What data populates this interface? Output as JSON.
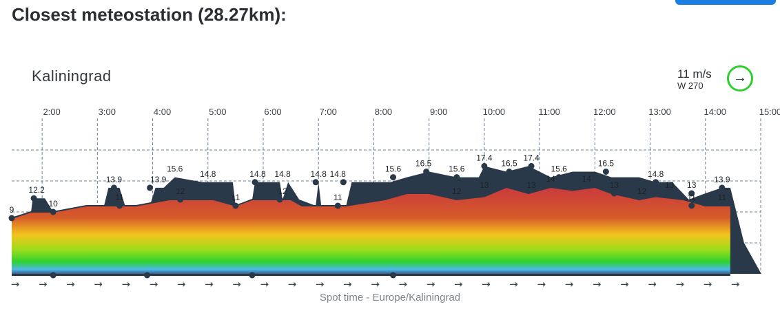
{
  "header": {
    "title": "Closest meteostation (28.27km):"
  },
  "station": {
    "name": "Kaliningrad",
    "wind_speed": "11 m/s",
    "wind_direction": "W 270",
    "arrow": "→",
    "ring_color": "#2fce2f"
  },
  "footer": {
    "caption": "Spot time - Europe/Kaliningrad"
  },
  "chart_data": {
    "type": "area",
    "xlabel": "Spot time - Europe/Kaliningrad",
    "x_ticks": [
      "2:00",
      "3:00",
      "4:00",
      "5:00",
      "6:00",
      "7:00",
      "8:00",
      "9:00",
      "10:00",
      "11:00",
      "12:00",
      "13:00",
      "14:00",
      "15:00"
    ],
    "xlim": [
      1.45,
      15.0
    ],
    "ylim": [
      0,
      20
    ],
    "grid": true,
    "y_gridlines": [
      5,
      10,
      15,
      20
    ],
    "colors": {
      "gust_band": "#29394a",
      "axis": "#456075",
      "label": "#1e2226"
    },
    "gradient": [
      {
        "stop": 0.0,
        "color": "#c93a3d"
      },
      {
        "stop": 0.35,
        "color": "#d65a2a"
      },
      {
        "stop": 0.55,
        "color": "#f2c51c"
      },
      {
        "stop": 0.72,
        "color": "#9edc1b"
      },
      {
        "stop": 0.86,
        "color": "#2fd22f"
      },
      {
        "stop": 0.95,
        "color": "#4cb8e8"
      },
      {
        "stop": 1.0,
        "color": "#3d5d8c"
      }
    ],
    "series": [
      {
        "name": "wind",
        "points": [
          [
            1.45,
            9
          ],
          [
            1.8,
            10
          ],
          [
            2.2,
            10
          ],
          [
            2.8,
            11
          ],
          [
            3.7,
            11
          ],
          [
            4.3,
            12
          ],
          [
            5.1,
            12
          ],
          [
            5.5,
            11
          ],
          [
            5.8,
            12
          ],
          [
            6.5,
            12
          ],
          [
            6.7,
            11
          ],
          [
            7.0,
            11
          ],
          [
            7.5,
            11
          ],
          [
            8.2,
            12
          ],
          [
            8.6,
            13
          ],
          [
            9.0,
            13
          ],
          [
            9.5,
            12
          ],
          [
            10.0,
            12.5
          ],
          [
            10.4,
            14
          ],
          [
            10.8,
            13
          ],
          [
            11.2,
            14
          ],
          [
            11.6,
            13.5
          ],
          [
            12.0,
            14
          ],
          [
            12.3,
            13
          ],
          [
            12.8,
            12
          ],
          [
            13.1,
            12.5
          ],
          [
            13.6,
            12
          ],
          [
            14.0,
            11
          ],
          [
            14.3,
            11
          ],
          [
            14.45,
            11
          ]
        ]
      },
      {
        "name": "gust",
        "points": [
          [
            1.45,
            9
          ],
          [
            1.8,
            10
          ],
          [
            1.83,
            12.2
          ],
          [
            2.05,
            12.2
          ],
          [
            2.2,
            10
          ],
          [
            2.8,
            11
          ],
          [
            3.12,
            11
          ],
          [
            3.2,
            13.9
          ],
          [
            3.4,
            13.9
          ],
          [
            3.5,
            11
          ],
          [
            3.7,
            11
          ],
          [
            3.95,
            11
          ],
          [
            4.05,
            13.9
          ],
          [
            4.2,
            13.9
          ],
          [
            4.4,
            15.6
          ],
          [
            4.9,
            14.8
          ],
          [
            5.45,
            14.8
          ],
          [
            5.5,
            11
          ],
          [
            5.8,
            12
          ],
          [
            5.85,
            14.8
          ],
          [
            6.3,
            14.8
          ],
          [
            6.35,
            12
          ],
          [
            6.45,
            14.8
          ],
          [
            6.65,
            12
          ],
          [
            6.95,
            11
          ],
          [
            7.0,
            14.8
          ],
          [
            7.05,
            11
          ],
          [
            7.5,
            11
          ],
          [
            7.6,
            14.8
          ],
          [
            8.3,
            14.8
          ],
          [
            8.6,
            15.6
          ],
          [
            9.0,
            16.5
          ],
          [
            9.5,
            15.6
          ],
          [
            9.9,
            15.6
          ],
          [
            10.0,
            17.4
          ],
          [
            10.4,
            16.5
          ],
          [
            10.8,
            17.4
          ],
          [
            11.2,
            15.6
          ],
          [
            11.6,
            16.5
          ],
          [
            12.0,
            16.5
          ],
          [
            12.3,
            15.6
          ],
          [
            12.8,
            15.6
          ],
          [
            13.1,
            14.8
          ],
          [
            13.4,
            14.8
          ],
          [
            13.7,
            12
          ],
          [
            14.0,
            13
          ],
          [
            14.3,
            13.9
          ],
          [
            14.45,
            13.9
          ]
        ]
      }
    ],
    "labels": [
      {
        "x": 1.45,
        "y": 9,
        "text": "9",
        "pos": "above"
      },
      {
        "x": 1.9,
        "y": 12.2,
        "text": "12.2",
        "pos": "above"
      },
      {
        "x": 2.2,
        "y": 10,
        "text": "10",
        "pos": "above"
      },
      {
        "x": 3.3,
        "y": 13.9,
        "text": "13.9",
        "pos": "above"
      },
      {
        "x": 3.4,
        "y": 11,
        "text": "11",
        "pos": "above"
      },
      {
        "x": 4.1,
        "y": 13.9,
        "text": "13.9",
        "pos": "above"
      },
      {
        "x": 4.4,
        "y": 15.6,
        "text": "15.6",
        "pos": "above"
      },
      {
        "x": 4.5,
        "y": 12,
        "text": "12",
        "pos": "above"
      },
      {
        "x": 5.0,
        "y": 14.8,
        "text": "14.8",
        "pos": "above"
      },
      {
        "x": 5.5,
        "y": 11,
        "text": "11",
        "pos": "above"
      },
      {
        "x": 5.9,
        "y": 14.8,
        "text": "14.8",
        "pos": "above"
      },
      {
        "x": 6.35,
        "y": 14.8,
        "text": "14.8",
        "pos": "above"
      },
      {
        "x": 6.35,
        "y": 12,
        "text": "12",
        "pos": "above"
      },
      {
        "x": 7.0,
        "y": 14.8,
        "text": "14.8",
        "pos": "above"
      },
      {
        "x": 7.35,
        "y": 14.8,
        "text": "14.8",
        "pos": "above"
      },
      {
        "x": 7.35,
        "y": 11,
        "text": "11",
        "pos": "above"
      },
      {
        "x": 8.35,
        "y": 15.6,
        "text": "15.6",
        "pos": "above"
      },
      {
        "x": 8.9,
        "y": 16.5,
        "text": "16.5",
        "pos": "above"
      },
      {
        "x": 9.5,
        "y": 15.6,
        "text": "15.6",
        "pos": "above"
      },
      {
        "x": 9.5,
        "y": 12,
        "text": "12",
        "pos": "above"
      },
      {
        "x": 10.0,
        "y": 17.4,
        "text": "17.4",
        "pos": "above"
      },
      {
        "x": 10.0,
        "y": 13,
        "text": "13",
        "pos": "above"
      },
      {
        "x": 10.45,
        "y": 16.5,
        "text": "16.5",
        "pos": "above"
      },
      {
        "x": 10.85,
        "y": 17.4,
        "text": "17.4",
        "pos": "above"
      },
      {
        "x": 10.85,
        "y": 13,
        "text": "13",
        "pos": "above"
      },
      {
        "x": 11.35,
        "y": 15.6,
        "text": "15.6",
        "pos": "above"
      },
      {
        "x": 11.2,
        "y": 14,
        "text": "14",
        "pos": "above"
      },
      {
        "x": 11.85,
        "y": 14,
        "text": "14",
        "pos": "above"
      },
      {
        "x": 12.2,
        "y": 16.5,
        "text": "16.5",
        "pos": "above"
      },
      {
        "x": 12.35,
        "y": 13,
        "text": "13",
        "pos": "above"
      },
      {
        "x": 12.85,
        "y": 12,
        "text": "12",
        "pos": "above"
      },
      {
        "x": 13.1,
        "y": 14.8,
        "text": "14.8",
        "pos": "above"
      },
      {
        "x": 13.35,
        "y": 13,
        "text": "13",
        "pos": "above"
      },
      {
        "x": 13.75,
        "y": 13,
        "text": "13",
        "pos": "above"
      },
      {
        "x": 13.75,
        "y": 11,
        "text": "11",
        "pos": "above"
      },
      {
        "x": 14.3,
        "y": 13.9,
        "text": "13.9",
        "pos": "above"
      },
      {
        "x": 14.3,
        "y": 11,
        "text": "11",
        "pos": "above"
      }
    ],
    "markers": [
      {
        "x": 1.45,
        "y": 9
      },
      {
        "x": 1.85,
        "y": 12.2
      },
      {
        "x": 2.2,
        "y": 10
      },
      {
        "x": 3.3,
        "y": 13.9
      },
      {
        "x": 3.4,
        "y": 11
      },
      {
        "x": 3.95,
        "y": 13.9
      },
      {
        "x": 4.5,
        "y": 12
      },
      {
        "x": 5.5,
        "y": 11
      },
      {
        "x": 5.85,
        "y": 14.8
      },
      {
        "x": 6.3,
        "y": 12
      },
      {
        "x": 6.95,
        "y": 14.8
      },
      {
        "x": 7.35,
        "y": 11
      },
      {
        "x": 7.45,
        "y": 14.8
      },
      {
        "x": 8.35,
        "y": 15.6
      },
      {
        "x": 8.35,
        "y": 14.2
      },
      {
        "x": 8.95,
        "y": 16.5
      },
      {
        "x": 9.5,
        "y": 15.6
      },
      {
        "x": 10.0,
        "y": 17.4
      },
      {
        "x": 10.0,
        "y": 13
      },
      {
        "x": 10.45,
        "y": 16.5
      },
      {
        "x": 10.85,
        "y": 17.4
      },
      {
        "x": 11.35,
        "y": 15.6
      },
      {
        "x": 12.2,
        "y": 16.5
      },
      {
        "x": 12.35,
        "y": 13
      },
      {
        "x": 13.1,
        "y": 14.8
      },
      {
        "x": 13.35,
        "y": 13
      },
      {
        "x": 13.75,
        "y": 13
      },
      {
        "x": 13.75,
        "y": 11
      },
      {
        "x": 14.3,
        "y": 13.9
      }
    ],
    "dir_row": {
      "arrow": "→",
      "count": 27,
      "dots_x": [
        2.2,
        3.9,
        5.8,
        8.35
      ]
    }
  }
}
